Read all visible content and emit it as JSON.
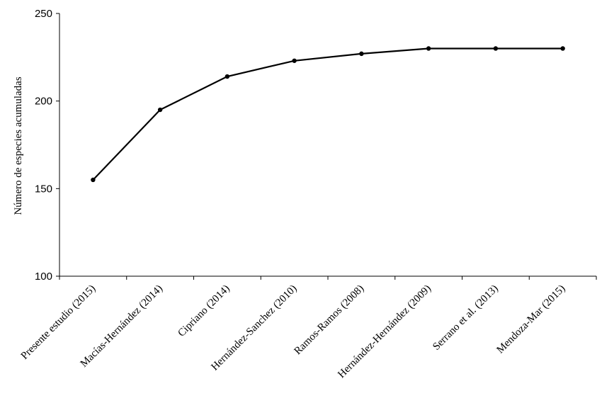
{
  "chart_data": {
    "type": "line",
    "title": "",
    "xlabel": "",
    "ylabel": "Número de especies acumuladas",
    "categories": [
      "Presente estudio (2015)",
      "Macías-Hernández (2014)",
      "Cipriano (2014)",
      "Hernández-Sanchez (2010)",
      "Ramos-Ramos (2008)",
      "Hernández-Hernández (2009)",
      "Serrano et al. (2013)",
      "Mendoza-Mar (2015)"
    ],
    "series": [
      {
        "values": [
          155,
          195,
          214,
          223,
          227,
          230,
          230,
          230
        ]
      }
    ],
    "ylim": [
      100,
      250
    ],
    "yticks": [
      100,
      150,
      200,
      250
    ],
    "grid": false,
    "legend": "none",
    "colors": {
      "line": "#000000",
      "axis": "#000000"
    }
  }
}
